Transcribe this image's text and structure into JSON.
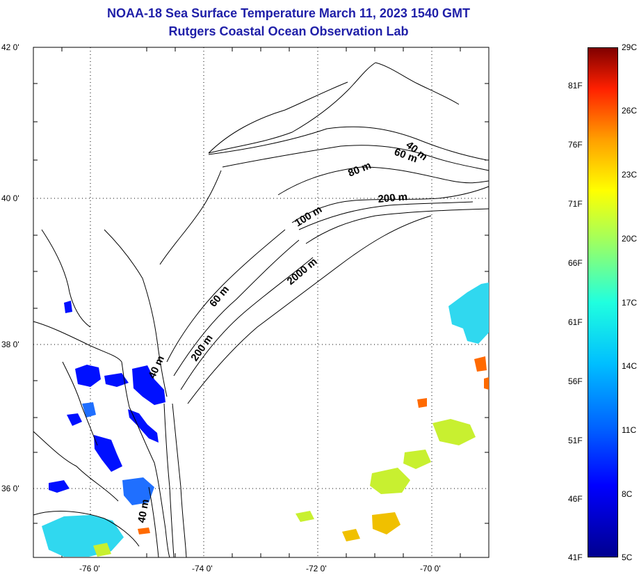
{
  "title_line1": "NOAA-18 Sea Surface Temperature March 11, 2023 1540 GMT",
  "title_line2": "Rutgers Coastal Ocean Observation Lab",
  "lat_labels": [
    "42 0'",
    "40 0'",
    "38 0'",
    "36 0'"
  ],
  "lon_labels": [
    "-76 0'",
    "-74 0'",
    "-72 0'",
    "-70 0'"
  ],
  "depth_labels": [
    "40 m",
    "60 m",
    "80 m",
    "200 m",
    "100 m",
    "2000 m",
    "60 m",
    "200 m",
    "40 m",
    "40 m"
  ],
  "colorbar": {
    "celsius": [
      "29C",
      "26C",
      "23C",
      "20C",
      "17C",
      "14C",
      "11C",
      "8C",
      "5C"
    ],
    "fahrenheit": [
      "81F",
      "76F",
      "71F",
      "66F",
      "61F",
      "56F",
      "51F",
      "46F",
      "41F"
    ]
  },
  "colors": {
    "title": "#1f1fa8",
    "cold": "#0000ff",
    "cool": "#00bfff",
    "mild": "#9fff60",
    "warm": "#ffff00",
    "hot": "#ff6000"
  }
}
